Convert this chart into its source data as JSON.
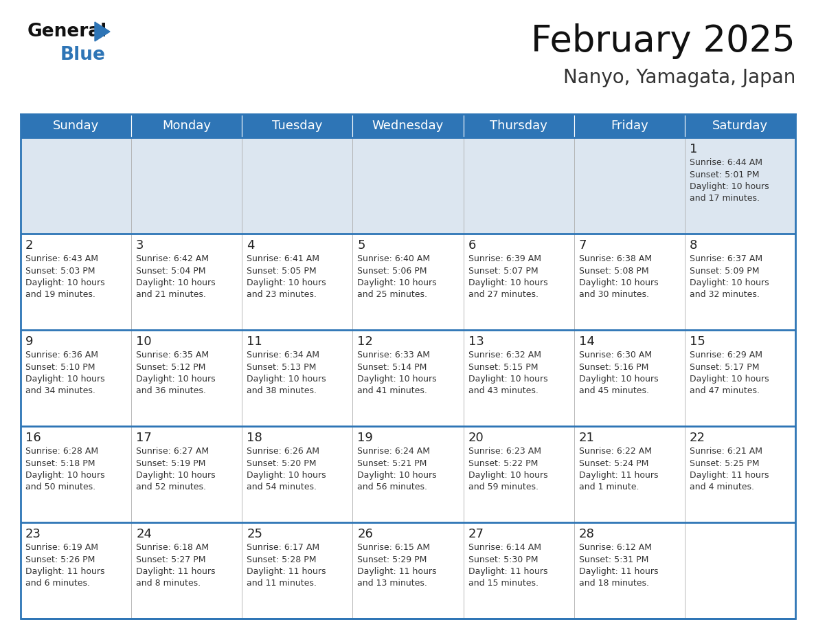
{
  "title": "February 2025",
  "subtitle": "Nanyo, Yamagata, Japan",
  "header_color": "#2e75b6",
  "header_text_color": "#ffffff",
  "background_color": "#ffffff",
  "cell_bg_row0": "#dce6f0",
  "cell_border_color": "#aaaaaa",
  "week_sep_color": "#2e75b6",
  "days_of_week": [
    "Sunday",
    "Monday",
    "Tuesday",
    "Wednesday",
    "Thursday",
    "Friday",
    "Saturday"
  ],
  "title_fontsize": 38,
  "subtitle_fontsize": 20,
  "header_fontsize": 13,
  "day_num_fontsize": 13,
  "info_fontsize": 9,
  "logo_color1": "#111111",
  "logo_color2": "#2e75b6",
  "logo_tri_color": "#2e75b6",
  "calendar": [
    [
      {
        "day": null,
        "info": null
      },
      {
        "day": null,
        "info": null
      },
      {
        "day": null,
        "info": null
      },
      {
        "day": null,
        "info": null
      },
      {
        "day": null,
        "info": null
      },
      {
        "day": null,
        "info": null
      },
      {
        "day": 1,
        "info": "Sunrise: 6:44 AM\nSunset: 5:01 PM\nDaylight: 10 hours\nand 17 minutes."
      }
    ],
    [
      {
        "day": 2,
        "info": "Sunrise: 6:43 AM\nSunset: 5:03 PM\nDaylight: 10 hours\nand 19 minutes."
      },
      {
        "day": 3,
        "info": "Sunrise: 6:42 AM\nSunset: 5:04 PM\nDaylight: 10 hours\nand 21 minutes."
      },
      {
        "day": 4,
        "info": "Sunrise: 6:41 AM\nSunset: 5:05 PM\nDaylight: 10 hours\nand 23 minutes."
      },
      {
        "day": 5,
        "info": "Sunrise: 6:40 AM\nSunset: 5:06 PM\nDaylight: 10 hours\nand 25 minutes."
      },
      {
        "day": 6,
        "info": "Sunrise: 6:39 AM\nSunset: 5:07 PM\nDaylight: 10 hours\nand 27 minutes."
      },
      {
        "day": 7,
        "info": "Sunrise: 6:38 AM\nSunset: 5:08 PM\nDaylight: 10 hours\nand 30 minutes."
      },
      {
        "day": 8,
        "info": "Sunrise: 6:37 AM\nSunset: 5:09 PM\nDaylight: 10 hours\nand 32 minutes."
      }
    ],
    [
      {
        "day": 9,
        "info": "Sunrise: 6:36 AM\nSunset: 5:10 PM\nDaylight: 10 hours\nand 34 minutes."
      },
      {
        "day": 10,
        "info": "Sunrise: 6:35 AM\nSunset: 5:12 PM\nDaylight: 10 hours\nand 36 minutes."
      },
      {
        "day": 11,
        "info": "Sunrise: 6:34 AM\nSunset: 5:13 PM\nDaylight: 10 hours\nand 38 minutes."
      },
      {
        "day": 12,
        "info": "Sunrise: 6:33 AM\nSunset: 5:14 PM\nDaylight: 10 hours\nand 41 minutes."
      },
      {
        "day": 13,
        "info": "Sunrise: 6:32 AM\nSunset: 5:15 PM\nDaylight: 10 hours\nand 43 minutes."
      },
      {
        "day": 14,
        "info": "Sunrise: 6:30 AM\nSunset: 5:16 PM\nDaylight: 10 hours\nand 45 minutes."
      },
      {
        "day": 15,
        "info": "Sunrise: 6:29 AM\nSunset: 5:17 PM\nDaylight: 10 hours\nand 47 minutes."
      }
    ],
    [
      {
        "day": 16,
        "info": "Sunrise: 6:28 AM\nSunset: 5:18 PM\nDaylight: 10 hours\nand 50 minutes."
      },
      {
        "day": 17,
        "info": "Sunrise: 6:27 AM\nSunset: 5:19 PM\nDaylight: 10 hours\nand 52 minutes."
      },
      {
        "day": 18,
        "info": "Sunrise: 6:26 AM\nSunset: 5:20 PM\nDaylight: 10 hours\nand 54 minutes."
      },
      {
        "day": 19,
        "info": "Sunrise: 6:24 AM\nSunset: 5:21 PM\nDaylight: 10 hours\nand 56 minutes."
      },
      {
        "day": 20,
        "info": "Sunrise: 6:23 AM\nSunset: 5:22 PM\nDaylight: 10 hours\nand 59 minutes."
      },
      {
        "day": 21,
        "info": "Sunrise: 6:22 AM\nSunset: 5:24 PM\nDaylight: 11 hours\nand 1 minute."
      },
      {
        "day": 22,
        "info": "Sunrise: 6:21 AM\nSunset: 5:25 PM\nDaylight: 11 hours\nand 4 minutes."
      }
    ],
    [
      {
        "day": 23,
        "info": "Sunrise: 6:19 AM\nSunset: 5:26 PM\nDaylight: 11 hours\nand 6 minutes."
      },
      {
        "day": 24,
        "info": "Sunrise: 6:18 AM\nSunset: 5:27 PM\nDaylight: 11 hours\nand 8 minutes."
      },
      {
        "day": 25,
        "info": "Sunrise: 6:17 AM\nSunset: 5:28 PM\nDaylight: 11 hours\nand 11 minutes."
      },
      {
        "day": 26,
        "info": "Sunrise: 6:15 AM\nSunset: 5:29 PM\nDaylight: 11 hours\nand 13 minutes."
      },
      {
        "day": 27,
        "info": "Sunrise: 6:14 AM\nSunset: 5:30 PM\nDaylight: 11 hours\nand 15 minutes."
      },
      {
        "day": 28,
        "info": "Sunrise: 6:12 AM\nSunset: 5:31 PM\nDaylight: 11 hours\nand 18 minutes."
      },
      {
        "day": null,
        "info": null
      }
    ]
  ]
}
